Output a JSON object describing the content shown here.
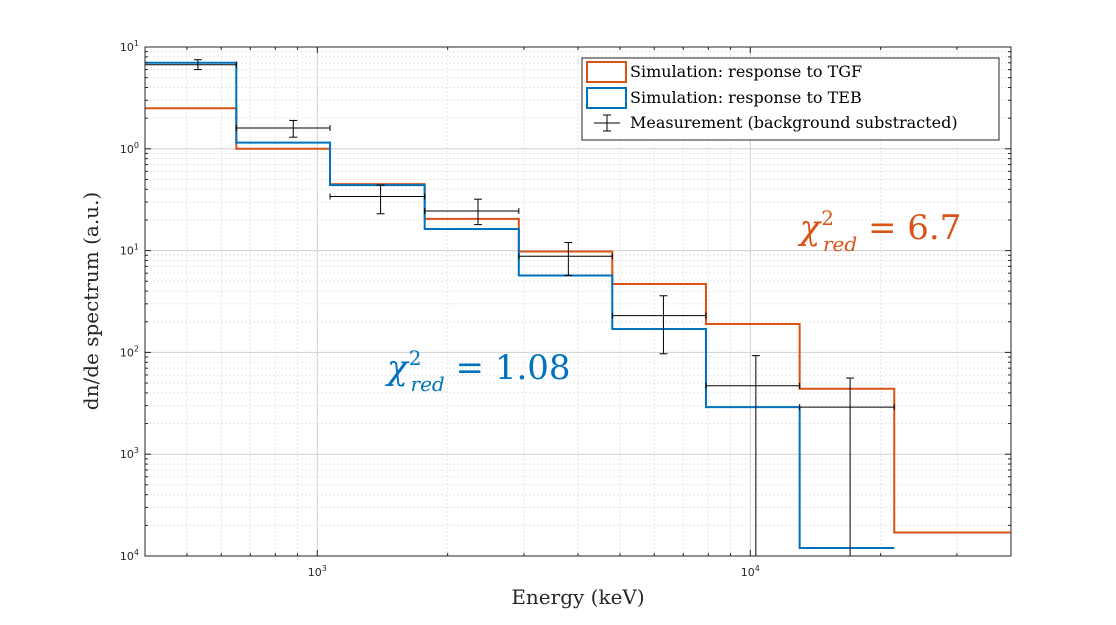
{
  "chart_data": {
    "type": "line",
    "step_histogram": true,
    "xlabel": "Energy (keV)",
    "ylabel": "dn/de spectrum (a.u.)",
    "x_scale": "log",
    "y_scale": "log",
    "xlim": [
      400,
      40000
    ],
    "ylim": [
      0.0001,
      10
    ],
    "grid": true,
    "minor_grid": true,
    "legend_position": "top-right",
    "bin_edges": [
      400,
      650,
      1070,
      1770,
      2920,
      4800,
      7900,
      13000,
      21500,
      40000
    ],
    "series": [
      {
        "name": "Simulation: response to TGF",
        "color": "#d95319",
        "values": [
          2.5,
          1.0,
          0.45,
          0.205,
          0.098,
          0.047,
          0.019,
          0.0044,
          0.00017
        ]
      },
      {
        "name": "Simulation: response to TEB",
        "color": "#0072bd",
        "values": [
          7.0,
          1.15,
          0.44,
          0.163,
          0.057,
          0.017,
          0.0029,
          0.00012,
          null
        ]
      }
    ],
    "measurement": {
      "name": "Measurement (background substracted)",
      "color": "#000000",
      "points": [
        {
          "x": 530,
          "y": 6.7,
          "xlo": 400,
          "xhi": 650,
          "ylo": 6.0,
          "yhi": 7.5
        },
        {
          "x": 880,
          "y": 1.6,
          "xlo": 650,
          "xhi": 1070,
          "ylo": 1.3,
          "yhi": 1.9
        },
        {
          "x": 1400,
          "y": 0.34,
          "xlo": 1070,
          "xhi": 1770,
          "ylo": 0.23,
          "yhi": 0.44
        },
        {
          "x": 2350,
          "y": 0.245,
          "xlo": 1770,
          "xhi": 2920,
          "ylo": 0.18,
          "yhi": 0.32
        },
        {
          "x": 3800,
          "y": 0.088,
          "xlo": 2920,
          "xhi": 4800,
          "ylo": 0.057,
          "yhi": 0.12
        },
        {
          "x": 6300,
          "y": 0.023,
          "xlo": 4800,
          "xhi": 7900,
          "ylo": 0.0097,
          "yhi": 0.036
        },
        {
          "x": 10300,
          "y": 0.0047,
          "xlo": 7900,
          "xhi": 13000,
          "ylo": 0.0001,
          "yhi": 0.0093
        },
        {
          "x": 17000,
          "y": 0.0029,
          "xlo": 13000,
          "xhi": 21500,
          "ylo": 0.0001,
          "yhi": 0.0056
        }
      ]
    },
    "y_ticks": [
      {
        "value": 0.0001,
        "base": "10",
        "exp": "4"
      },
      {
        "value": 0.001,
        "base": "10",
        "exp": "3"
      },
      {
        "value": 0.01,
        "base": "10",
        "exp": "2"
      },
      {
        "value": 0.1,
        "base": "10",
        "exp": "1"
      },
      {
        "value": 1,
        "base": "10",
        "exp": "0"
      },
      {
        "value": 10,
        "base": "10",
        "exp": "1"
      }
    ],
    "x_ticks": [
      {
        "value": 1000,
        "base": "10",
        "exp": "3"
      },
      {
        "value": 10000,
        "base": "10",
        "exp": "4"
      }
    ],
    "annotations": [
      {
        "id": "tgf-chi",
        "chi": "χ",
        "sup": "2",
        "sub": "red",
        "rest": " = 6.7",
        "color": "#d95319",
        "x": 13000,
        "y": 0.13
      },
      {
        "id": "teb-chi",
        "chi": "χ",
        "sup": "2",
        "sub": "red",
        "rest": " = 1.08",
        "color": "#0072bd",
        "x": 1450,
        "y": 0.0055
      }
    ]
  }
}
